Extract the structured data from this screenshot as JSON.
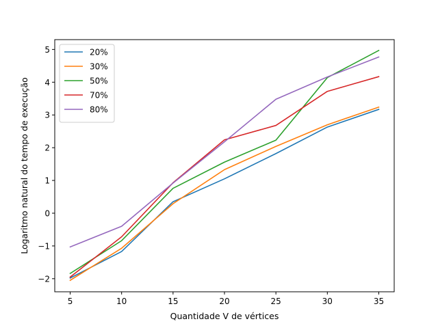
{
  "chart_data": {
    "type": "line",
    "title": "",
    "xlabel": "Quantidade V de vértices",
    "ylabel": "Logaritmo natural do tempo de execução",
    "x": [
      5,
      10,
      15,
      20,
      25,
      30,
      35
    ],
    "xticks": [
      5,
      10,
      15,
      20,
      25,
      30,
      35
    ],
    "yticks": [
      -2,
      -1,
      0,
      1,
      2,
      3,
      4,
      5
    ],
    "xlim": [
      3.5,
      36.5
    ],
    "ylim": [
      -2.4,
      5.3
    ],
    "grid": false,
    "legend_position": "top-left",
    "series": [
      {
        "name": "20%",
        "color": "#1f77b4",
        "values": [
          -1.98,
          -1.17,
          0.35,
          1.05,
          1.82,
          2.63,
          3.17
        ]
      },
      {
        "name": "30%",
        "color": "#ff7f0e",
        "values": [
          -2.05,
          -1.07,
          0.29,
          1.33,
          2.04,
          2.7,
          3.24
        ]
      },
      {
        "name": "50%",
        "color": "#2ca02c",
        "values": [
          -1.84,
          -0.84,
          0.76,
          1.56,
          2.23,
          4.14,
          4.97
        ]
      },
      {
        "name": "70%",
        "color": "#d62728",
        "values": [
          -1.95,
          -0.72,
          0.93,
          2.24,
          2.68,
          3.72,
          4.17
        ]
      },
      {
        "name": "80%",
        "color": "#9467bd",
        "values": [
          -1.03,
          -0.4,
          0.92,
          2.18,
          3.48,
          4.16,
          4.77
        ]
      }
    ]
  }
}
